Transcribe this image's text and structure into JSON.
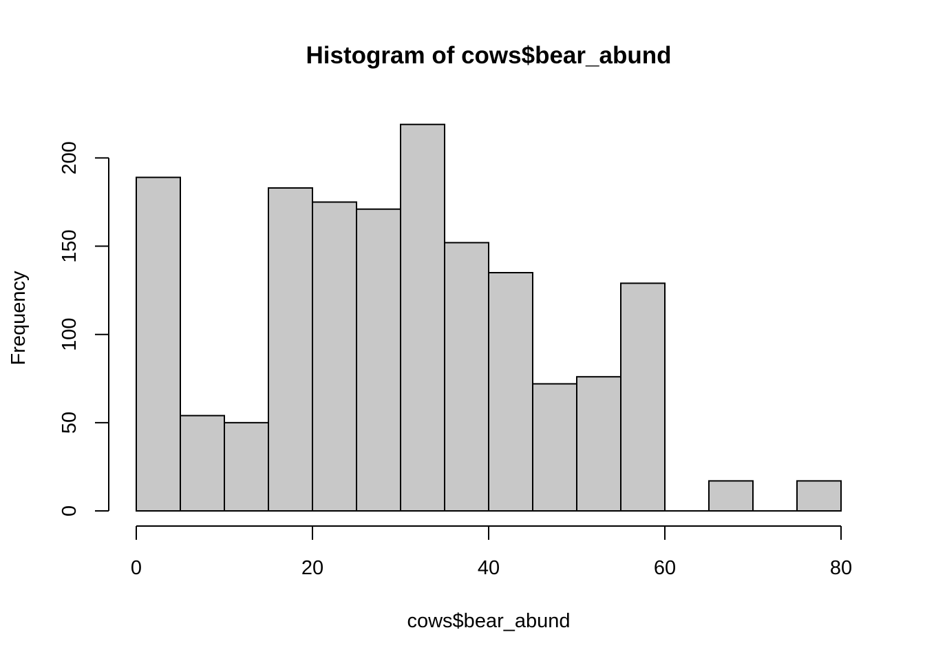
{
  "chart_data": {
    "type": "bar",
    "title": "Histogram of cows$bear_abund",
    "xlabel": "cows$bear_abund",
    "ylabel": "Frequency",
    "bin_width": 5,
    "bins": [
      {
        "start": 0,
        "end": 5,
        "count": 189
      },
      {
        "start": 5,
        "end": 10,
        "count": 54
      },
      {
        "start": 10,
        "end": 15,
        "count": 50
      },
      {
        "start": 15,
        "end": 20,
        "count": 183
      },
      {
        "start": 20,
        "end": 25,
        "count": 175
      },
      {
        "start": 25,
        "end": 30,
        "count": 171
      },
      {
        "start": 30,
        "end": 35,
        "count": 219
      },
      {
        "start": 35,
        "end": 40,
        "count": 152
      },
      {
        "start": 40,
        "end": 45,
        "count": 135
      },
      {
        "start": 45,
        "end": 50,
        "count": 72
      },
      {
        "start": 50,
        "end": 55,
        "count": 76
      },
      {
        "start": 55,
        "end": 60,
        "count": 129
      },
      {
        "start": 60,
        "end": 65,
        "count": 0
      },
      {
        "start": 65,
        "end": 70,
        "count": 17
      },
      {
        "start": 70,
        "end": 75,
        "count": 0
      },
      {
        "start": 75,
        "end": 80,
        "count": 17
      }
    ],
    "xlim": [
      0,
      80
    ],
    "ylim": [
      0,
      219
    ],
    "x_ticks": [
      0,
      20,
      40,
      60,
      80
    ],
    "y_ticks": [
      0,
      50,
      100,
      150,
      200
    ],
    "bar_fill": "#c8c8c8",
    "bar_stroke": "#000000",
    "grid": false,
    "legend": "none"
  }
}
